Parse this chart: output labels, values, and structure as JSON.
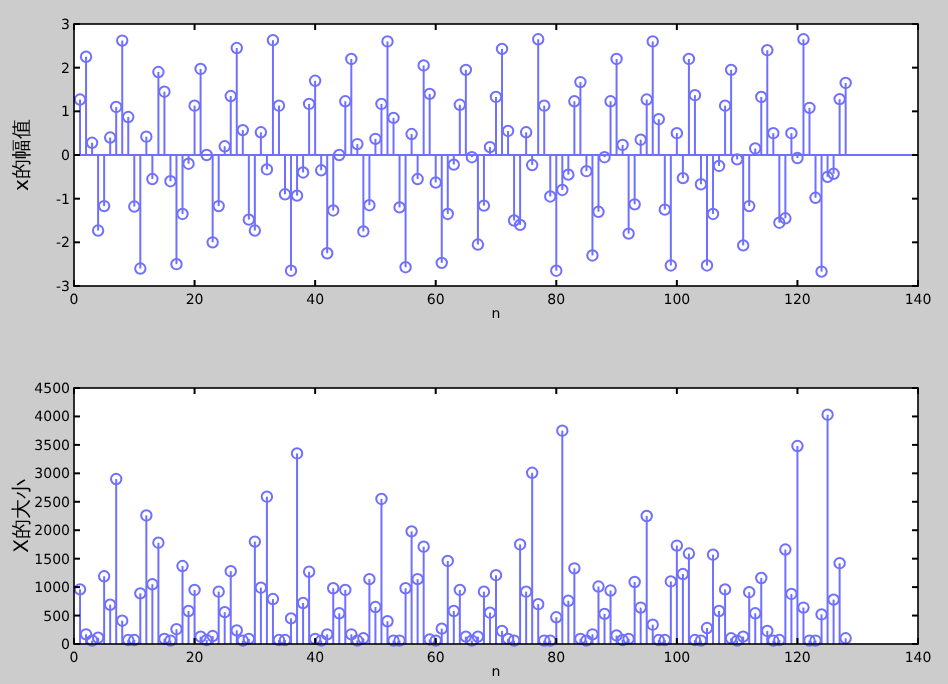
{
  "chart_data": [
    {
      "type": "lollipop",
      "xlabel": "n",
      "ylabel": "x的幅值",
      "color": "#7070ff",
      "marker": "circle",
      "xlim": [
        0,
        140
      ],
      "xticks": [
        0,
        20,
        40,
        60,
        80,
        100,
        120,
        140
      ],
      "ylim": [
        -3,
        3
      ],
      "yticks": [
        -3,
        -2,
        -1,
        0,
        1,
        2,
        3
      ],
      "ref_lines": [
        {
          "axis": "y",
          "value": 0,
          "color": "#7070ff"
        }
      ],
      "x": [
        1,
        2,
        3,
        4,
        5,
        6,
        7,
        8,
        9,
        10,
        11,
        12,
        13,
        14,
        15,
        16,
        17,
        18,
        19,
        20,
        21,
        22,
        23,
        24,
        25,
        26,
        27,
        28,
        29,
        30,
        31,
        32,
        33,
        34,
        35,
        36,
        37,
        38,
        39,
        40,
        41,
        42,
        43,
        44,
        45,
        46,
        47,
        48,
        49,
        50,
        51,
        52,
        53,
        54,
        55,
        56,
        57,
        58,
        59,
        60,
        61,
        62,
        63,
        64,
        65,
        66,
        67,
        68,
        69,
        70,
        71,
        72,
        73,
        74,
        75,
        76,
        77,
        78,
        79,
        80,
        81,
        82,
        83,
        84,
        85,
        86,
        87,
        88,
        89,
        90,
        91,
        92,
        93,
        94,
        95,
        96,
        97,
        98,
        99,
        100,
        101,
        102,
        103,
        104,
        105,
        106,
        107,
        108,
        109,
        110,
        111,
        112,
        113,
        114,
        115,
        116,
        117,
        118,
        119,
        120,
        121,
        122,
        123,
        124,
        125,
        126,
        127,
        128
      ],
      "values": [
        1.27,
        2.25,
        0.28,
        -1.73,
        -1.17,
        0.4,
        1.1,
        2.62,
        0.87,
        -1.18,
        -2.6,
        0.42,
        -0.55,
        1.9,
        1.45,
        -0.6,
        -2.5,
        -1.35,
        -0.2,
        1.13,
        1.97,
        0,
        -2.0,
        -1.17,
        0.2,
        1.35,
        2.45,
        0.57,
        -1.48,
        -1.73,
        0.52,
        -0.33,
        2.63,
        1.13,
        -0.9,
        -2.65,
        -0.93,
        -0.4,
        1.17,
        1.7,
        -0.35,
        -2.25,
        -1.27,
        0,
        1.23,
        2.2,
        0.25,
        -1.75,
        -1.15,
        0.37,
        1.17,
        2.6,
        0.85,
        -1.2,
        -2.57,
        0.48,
        -0.55,
        2.05,
        1.4,
        -0.63,
        -2.47,
        -1.35,
        -0.22,
        1.15,
        1.95,
        -0.05,
        -2.05,
        -1.16,
        0.18,
        1.33,
        2.43,
        0.55,
        -1.5,
        -1.6,
        0.52,
        -0.23,
        2.65,
        1.13,
        -0.95,
        -2.65,
        -0.8,
        -0.45,
        1.23,
        1.67,
        -0.37,
        -2.3,
        -1.3,
        -0.05,
        1.23,
        2.2,
        0.23,
        -1.8,
        -1.13,
        0.35,
        1.27,
        2.6,
        0.82,
        -1.25,
        -2.53,
        0.5,
        -0.53,
        2.2,
        1.37,
        -0.67,
        -2.53,
        -1.35,
        -0.25,
        1.13,
        1.95,
        -0.1,
        -2.07,
        -1.17,
        0.15,
        1.33,
        2.4,
        0.5,
        -1.55,
        -1.45,
        0.5,
        -0.07,
        2.65,
        1.08,
        -0.98,
        -2.67,
        -0.5,
        -0.43,
        1.28,
        1.65
      ]
    },
    {
      "type": "lollipop",
      "xlabel": "n",
      "ylabel": "X的大小",
      "color": "#7070ff",
      "marker": "circle",
      "xlim": [
        0,
        140
      ],
      "xticks": [
        0,
        20,
        40,
        60,
        80,
        100,
        120,
        140
      ],
      "ylim": [
        0,
        4500
      ],
      "yticks": [
        0,
        500,
        1000,
        1500,
        2000,
        2500,
        3000,
        3500,
        4000,
        4500
      ],
      "x": [
        1,
        2,
        3,
        4,
        5,
        6,
        7,
        8,
        9,
        10,
        11,
        12,
        13,
        14,
        15,
        16,
        17,
        18,
        19,
        20,
        21,
        22,
        23,
        24,
        25,
        26,
        27,
        28,
        29,
        30,
        31,
        32,
        33,
        34,
        35,
        36,
        37,
        38,
        39,
        40,
        41,
        42,
        43,
        44,
        45,
        46,
        47,
        48,
        49,
        50,
        51,
        52,
        53,
        54,
        55,
        56,
        57,
        58,
        59,
        60,
        61,
        62,
        63,
        64,
        65,
        66,
        67,
        68,
        69,
        70,
        71,
        72,
        73,
        74,
        75,
        76,
        77,
        78,
        79,
        80,
        81,
        82,
        83,
        84,
        85,
        86,
        87,
        88,
        89,
        90,
        91,
        92,
        93,
        94,
        95,
        96,
        97,
        98,
        99,
        100,
        101,
        102,
        103,
        104,
        105,
        106,
        107,
        108,
        109,
        110,
        111,
        112,
        113,
        114,
        115,
        116,
        117,
        118,
        119,
        120,
        121,
        122,
        123,
        124,
        125,
        126,
        127,
        128
      ],
      "values": [
        960,
        170,
        60,
        110,
        1190,
        690,
        2900,
        410,
        70,
        70,
        890,
        2260,
        1050,
        1780,
        90,
        60,
        260,
        1370,
        580,
        950,
        130,
        70,
        140,
        920,
        560,
        1280,
        240,
        60,
        90,
        1800,
        990,
        2590,
        790,
        70,
        70,
        450,
        3350,
        720,
        1270,
        90,
        60,
        170,
        980,
        540,
        950,
        170,
        60,
        100,
        1140,
        650,
        2550,
        400,
        60,
        60,
        980,
        1980,
        1140,
        1710,
        80,
        60,
        270,
        1460,
        580,
        950,
        130,
        60,
        130,
        920,
        550,
        1210,
        230,
        90,
        60,
        1750,
        920,
        3010,
        700,
        60,
        60,
        470,
        3750,
        760,
        1330,
        90,
        60,
        170,
        1010,
        530,
        940,
        150,
        70,
        90,
        1090,
        640,
        2250,
        340,
        70,
        70,
        1100,
        1730,
        1230,
        1590,
        70,
        60,
        280,
        1570,
        580,
        960,
        100,
        60,
        130,
        910,
        540,
        1160,
        230,
        60,
        70,
        1660,
        880,
        3480,
        640,
        60,
        60,
        520,
        4030,
        780,
        1420,
        100
      ]
    }
  ]
}
